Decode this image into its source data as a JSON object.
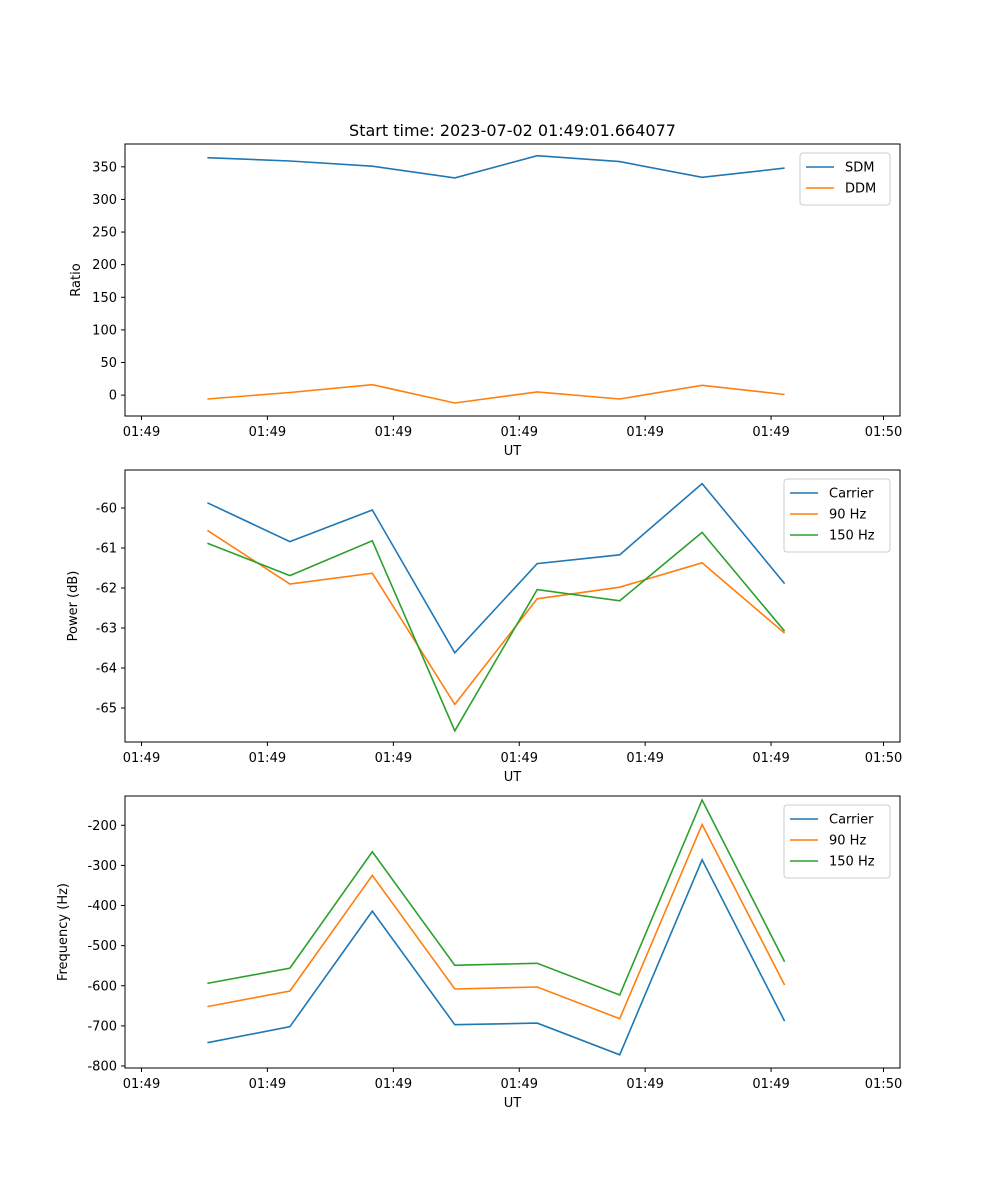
{
  "chart_data": [
    {
      "type": "line",
      "title": "Start time: 2023-07-02 01:49:01.664077",
      "xlabel": "UT",
      "ylabel": "Ratio",
      "xlim": [
        0,
        9.4
      ],
      "ylim": [
        -32,
        385
      ],
      "yticks": [
        0,
        50,
        100,
        150,
        200,
        250,
        300,
        350
      ],
      "xticks": [
        0.2,
        1.727,
        3.255,
        4.782,
        6.309,
        7.836,
        9.2
      ],
      "xtick_labels": [
        "01:49",
        "01:49",
        "01:49",
        "01:49",
        "01:49",
        "01:49",
        "01:50"
      ],
      "legend_loc": "upper right",
      "x": [
        1,
        2,
        3,
        4,
        5,
        6,
        7,
        8
      ],
      "series": [
        {
          "name": "SDM",
          "color": "#1f77b4",
          "values": [
            364,
            359,
            351,
            333,
            367,
            358,
            334,
            348
          ]
        },
        {
          "name": "DDM",
          "color": "#ff7f0e",
          "values": [
            -6,
            4,
            16,
            -12,
            5,
            -6,
            15,
            1
          ]
        }
      ]
    },
    {
      "type": "line",
      "title": "",
      "xlabel": "UT",
      "ylabel": "Power (dB)",
      "xlim": [
        0,
        9.4
      ],
      "ylim": [
        -65.85,
        -59.05
      ],
      "yticks": [
        -60,
        -61,
        -62,
        -63,
        -64,
        -65
      ],
      "xticks": [
        0.2,
        1.727,
        3.255,
        4.782,
        6.309,
        7.836,
        9.2
      ],
      "xtick_labels": [
        "01:49",
        "01:49",
        "01:49",
        "01:49",
        "01:49",
        "01:49",
        "01:50"
      ],
      "legend_loc": "upper right",
      "x": [
        1,
        2,
        3,
        4,
        5,
        6,
        7,
        8
      ],
      "series": [
        {
          "name": "Carrier",
          "color": "#1f77b4",
          "values": [
            -59.87,
            -60.84,
            -60.05,
            -63.62,
            -61.39,
            -61.17,
            -59.39,
            -61.89
          ]
        },
        {
          "name": "90 Hz",
          "color": "#ff7f0e",
          "values": [
            -60.56,
            -61.9,
            -61.63,
            -64.91,
            -62.27,
            -61.98,
            -61.37,
            -63.13
          ]
        },
        {
          "name": "150 Hz",
          "color": "#2ca02c",
          "values": [
            -60.88,
            -61.69,
            -60.82,
            -65.57,
            -62.04,
            -62.32,
            -60.61,
            -63.08
          ]
        }
      ]
    },
    {
      "type": "line",
      "title": "",
      "xlabel": "UT",
      "ylabel": "Frequency (Hz)",
      "xlim": [
        0,
        9.4
      ],
      "ylim": [
        -805,
        -127
      ],
      "yticks": [
        -200,
        -300,
        -400,
        -500,
        -600,
        -700,
        -800
      ],
      "xticks": [
        0.2,
        1.727,
        3.255,
        4.782,
        6.309,
        7.836,
        9.2
      ],
      "xtick_labels": [
        "01:49",
        "01:49",
        "01:49",
        "01:49",
        "01:49",
        "01:49",
        "01:50"
      ],
      "legend_loc": "upper right",
      "x": [
        1,
        2,
        3,
        4,
        5,
        6,
        7,
        8
      ],
      "series": [
        {
          "name": "Carrier",
          "color": "#1f77b4",
          "values": [
            -742,
            -702,
            -414,
            -697,
            -693,
            -772,
            -286,
            -688
          ]
        },
        {
          "name": "90 Hz",
          "color": "#ff7f0e",
          "values": [
            -652,
            -613,
            -325,
            -608,
            -603,
            -682,
            -198,
            -598
          ]
        },
        {
          "name": "150 Hz",
          "color": "#2ca02c",
          "values": [
            -594,
            -556,
            -266,
            -549,
            -544,
            -623,
            -137,
            -540
          ]
        }
      ]
    }
  ]
}
